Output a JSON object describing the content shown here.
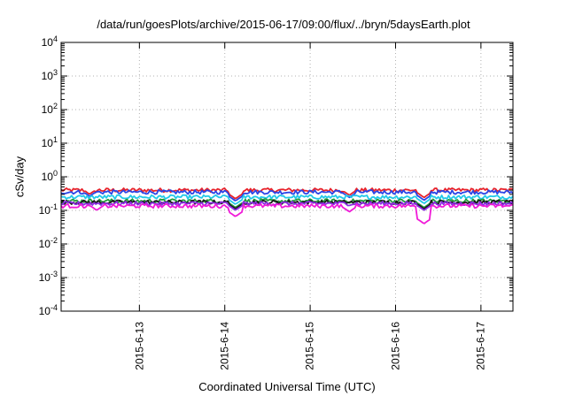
{
  "chart_data": {
    "type": "line",
    "title": "/data/run/goesPlots/archive/2015-06-17/09:00/flux/../bryn/5daysEarth.plot",
    "xlabel": "Coordinated Universal Time (UTC)",
    "ylabel": "cSv/day",
    "yscale": "log",
    "ylim": [
      0.0001,
      10000
    ],
    "xlim": [
      "2015-06-12T02:00",
      "2015-06-17T09:00"
    ],
    "grid": true,
    "legend": "none",
    "y_tick_labels": [
      {
        "base": "10",
        "exp": "4",
        "value": 10000
      },
      {
        "base": "10",
        "exp": "3",
        "value": 1000
      },
      {
        "base": "10",
        "exp": "2",
        "value": 100
      },
      {
        "base": "10",
        "exp": "1",
        "value": 10
      },
      {
        "base": "10",
        "exp": "0",
        "value": 1
      },
      {
        "base": "10",
        "exp": "-1",
        "value": 0.1
      },
      {
        "base": "10",
        "exp": "-2",
        "value": 0.01
      },
      {
        "base": "10",
        "exp": "-3",
        "value": 0.001
      },
      {
        "base": "10",
        "exp": "-4",
        "value": 0.0001
      }
    ],
    "x_tick_labels": [
      "2015-6-13",
      "2015-6-14",
      "2015-6-15",
      "2015-6-16",
      "2015-6-17"
    ],
    "series": [
      {
        "color": "#e8232b",
        "base": 0.4,
        "dips": [
          {
            "x": "2015-06-12T10:00",
            "value": 0.3
          },
          {
            "x": "2015-06-14T03:00",
            "value": 0.22
          },
          {
            "x": "2015-06-15T11:00",
            "value": 0.28
          },
          {
            "x": "2015-06-16T08:00",
            "value": 0.24
          }
        ]
      },
      {
        "color": "#2a44e6",
        "base": 0.35,
        "dips": [
          {
            "x": "2015-06-12T10:00",
            "value": 0.26
          },
          {
            "x": "2015-06-14T03:00",
            "value": 0.19
          },
          {
            "x": "2015-06-15T11:00",
            "value": 0.24
          },
          {
            "x": "2015-06-16T08:00",
            "value": 0.2
          }
        ]
      },
      {
        "color": "#22c9e8",
        "base": 0.25,
        "dips": [
          {
            "x": "2015-06-14T03:00",
            "value": 0.15
          },
          {
            "x": "2015-06-16T08:00",
            "value": 0.16
          }
        ]
      },
      {
        "color": "#229b3a",
        "base": 0.19,
        "dips": [
          {
            "x": "2015-06-14T03:00",
            "value": 0.12
          },
          {
            "x": "2015-06-16T08:00",
            "value": 0.12
          }
        ]
      },
      {
        "color": "#1a1a1a",
        "base": 0.175,
        "dips": [
          {
            "x": "2015-06-14T03:00",
            "value": 0.11
          },
          {
            "x": "2015-06-16T08:00",
            "value": 0.11
          }
        ]
      },
      {
        "color": "#8a2be2",
        "base": 0.16,
        "dips": [
          {
            "x": "2015-06-14T03:00",
            "value": 0.1
          },
          {
            "x": "2015-06-16T08:00",
            "value": 0.1
          }
        ]
      },
      {
        "color": "#f01ad8",
        "base": 0.135,
        "dips": [
          {
            "x": "2015-06-12T12:00",
            "value": 0.1
          },
          {
            "x": "2015-06-14T03:00",
            "value": 0.065
          },
          {
            "x": "2015-06-15T11:00",
            "value": 0.09
          },
          {
            "x": "2015-06-16T08:00",
            "value": 0.04
          }
        ]
      }
    ]
  }
}
